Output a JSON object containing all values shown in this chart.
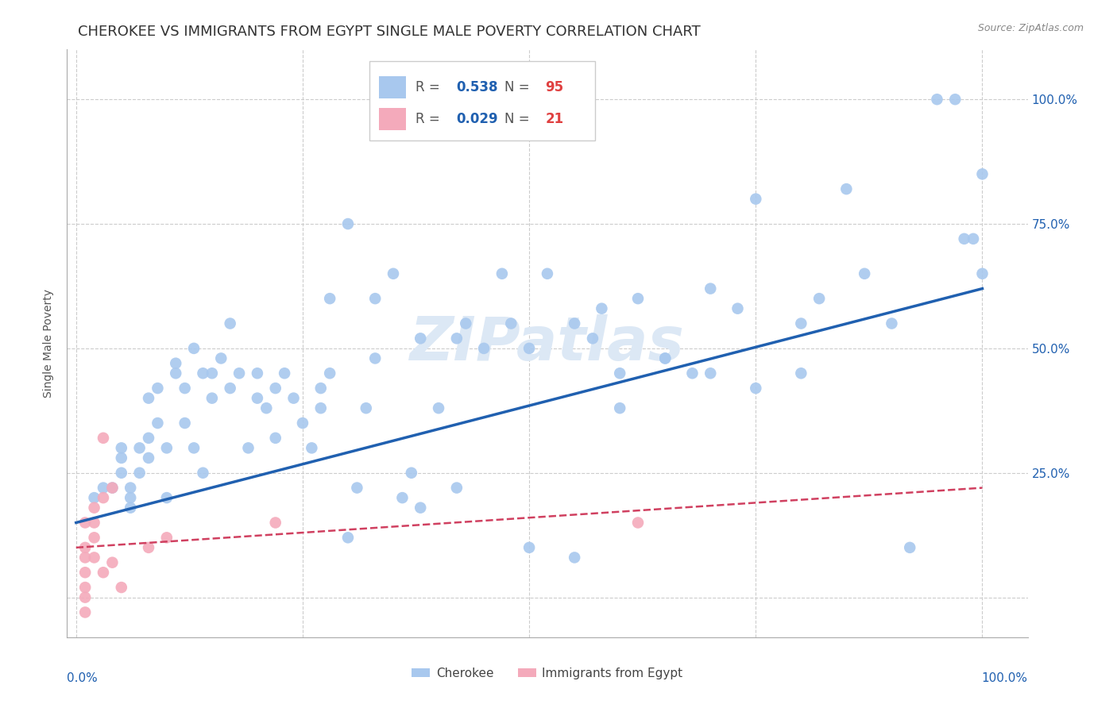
{
  "title": "CHEROKEE VS IMMIGRANTS FROM EGYPT SINGLE MALE POVERTY CORRELATION CHART",
  "source": "Source: ZipAtlas.com",
  "ylabel": "Single Male Poverty",
  "watermark": "ZIPatlas",
  "blue_color": "#A8C8EE",
  "blue_line_color": "#2060B0",
  "pink_color": "#F4AABB",
  "pink_line_color": "#D04060",
  "grid_color": "#CCCCCC",
  "blue_points_x": [
    0.02,
    0.03,
    0.04,
    0.05,
    0.05,
    0.05,
    0.06,
    0.06,
    0.06,
    0.07,
    0.07,
    0.08,
    0.08,
    0.08,
    0.09,
    0.09,
    0.1,
    0.1,
    0.11,
    0.11,
    0.12,
    0.12,
    0.13,
    0.13,
    0.14,
    0.14,
    0.15,
    0.15,
    0.16,
    0.17,
    0.17,
    0.18,
    0.19,
    0.2,
    0.2,
    0.21,
    0.22,
    0.22,
    0.23,
    0.24,
    0.25,
    0.26,
    0.27,
    0.27,
    0.28,
    0.3,
    0.31,
    0.32,
    0.33,
    0.35,
    0.36,
    0.37,
    0.38,
    0.4,
    0.42,
    0.43,
    0.45,
    0.47,
    0.48,
    0.5,
    0.52,
    0.55,
    0.57,
    0.58,
    0.6,
    0.62,
    0.65,
    0.68,
    0.7,
    0.73,
    0.75,
    0.8,
    0.82,
    0.85,
    0.87,
    0.9,
    0.92,
    0.95,
    0.97,
    0.98,
    0.99,
    1.0,
    1.0,
    0.28,
    0.3,
    0.33,
    0.38,
    0.42,
    0.5,
    0.55,
    0.6,
    0.65,
    0.7,
    0.75,
    0.8
  ],
  "blue_points_y": [
    0.2,
    0.22,
    0.22,
    0.25,
    0.28,
    0.3,
    0.2,
    0.22,
    0.18,
    0.3,
    0.25,
    0.28,
    0.32,
    0.4,
    0.42,
    0.35,
    0.3,
    0.2,
    0.45,
    0.47,
    0.42,
    0.35,
    0.5,
    0.3,
    0.45,
    0.25,
    0.4,
    0.45,
    0.48,
    0.55,
    0.42,
    0.45,
    0.3,
    0.45,
    0.4,
    0.38,
    0.32,
    0.42,
    0.45,
    0.4,
    0.35,
    0.3,
    0.38,
    0.42,
    0.45,
    0.12,
    0.22,
    0.38,
    0.48,
    0.65,
    0.2,
    0.25,
    0.18,
    0.38,
    0.22,
    0.55,
    0.5,
    0.65,
    0.55,
    0.5,
    0.65,
    0.55,
    0.52,
    0.58,
    0.45,
    0.6,
    0.48,
    0.45,
    0.62,
    0.58,
    0.8,
    0.55,
    0.6,
    0.82,
    0.65,
    0.55,
    0.1,
    1.0,
    1.0,
    0.72,
    0.72,
    0.65,
    0.85,
    0.6,
    0.75,
    0.6,
    0.52,
    0.52,
    0.1,
    0.08,
    0.38,
    0.48,
    0.45,
    0.42,
    0.45
  ],
  "pink_points_x": [
    0.01,
    0.01,
    0.01,
    0.01,
    0.01,
    0.01,
    0.01,
    0.02,
    0.02,
    0.02,
    0.02,
    0.03,
    0.03,
    0.03,
    0.04,
    0.04,
    0.05,
    0.08,
    0.1,
    0.22,
    0.62
  ],
  "pink_points_y": [
    0.15,
    0.1,
    0.08,
    0.05,
    0.02,
    0.0,
    -0.03,
    0.18,
    0.15,
    0.12,
    0.08,
    0.2,
    0.32,
    0.05,
    0.22,
    0.07,
    0.02,
    0.1,
    0.12,
    0.15,
    0.15
  ],
  "blue_line_x": [
    0.0,
    1.0
  ],
  "blue_line_y": [
    0.15,
    0.62
  ],
  "pink_line_x": [
    0.0,
    1.0
  ],
  "pink_line_y": [
    0.1,
    0.22
  ],
  "xlim": [
    -0.01,
    1.05
  ],
  "ylim": [
    -0.08,
    1.1
  ],
  "yticks": [
    0.0,
    0.25,
    0.5,
    0.75,
    1.0
  ],
  "ytick_labels": [
    "",
    "25.0%",
    "50.0%",
    "75.0%",
    "100.0%"
  ],
  "xticks": [
    0.0,
    0.25,
    0.5,
    0.75,
    1.0
  ],
  "background_color": "#FFFFFF",
  "title_fontsize": 13,
  "axis_label_fontsize": 10,
  "tick_fontsize": 11,
  "legend_label_blue": "Cherokee",
  "legend_label_pink": "Immigrants from Egypt",
  "legend_blue_r": "0.538",
  "legend_blue_n": "95",
  "legend_pink_r": "0.029",
  "legend_pink_n": "21"
}
